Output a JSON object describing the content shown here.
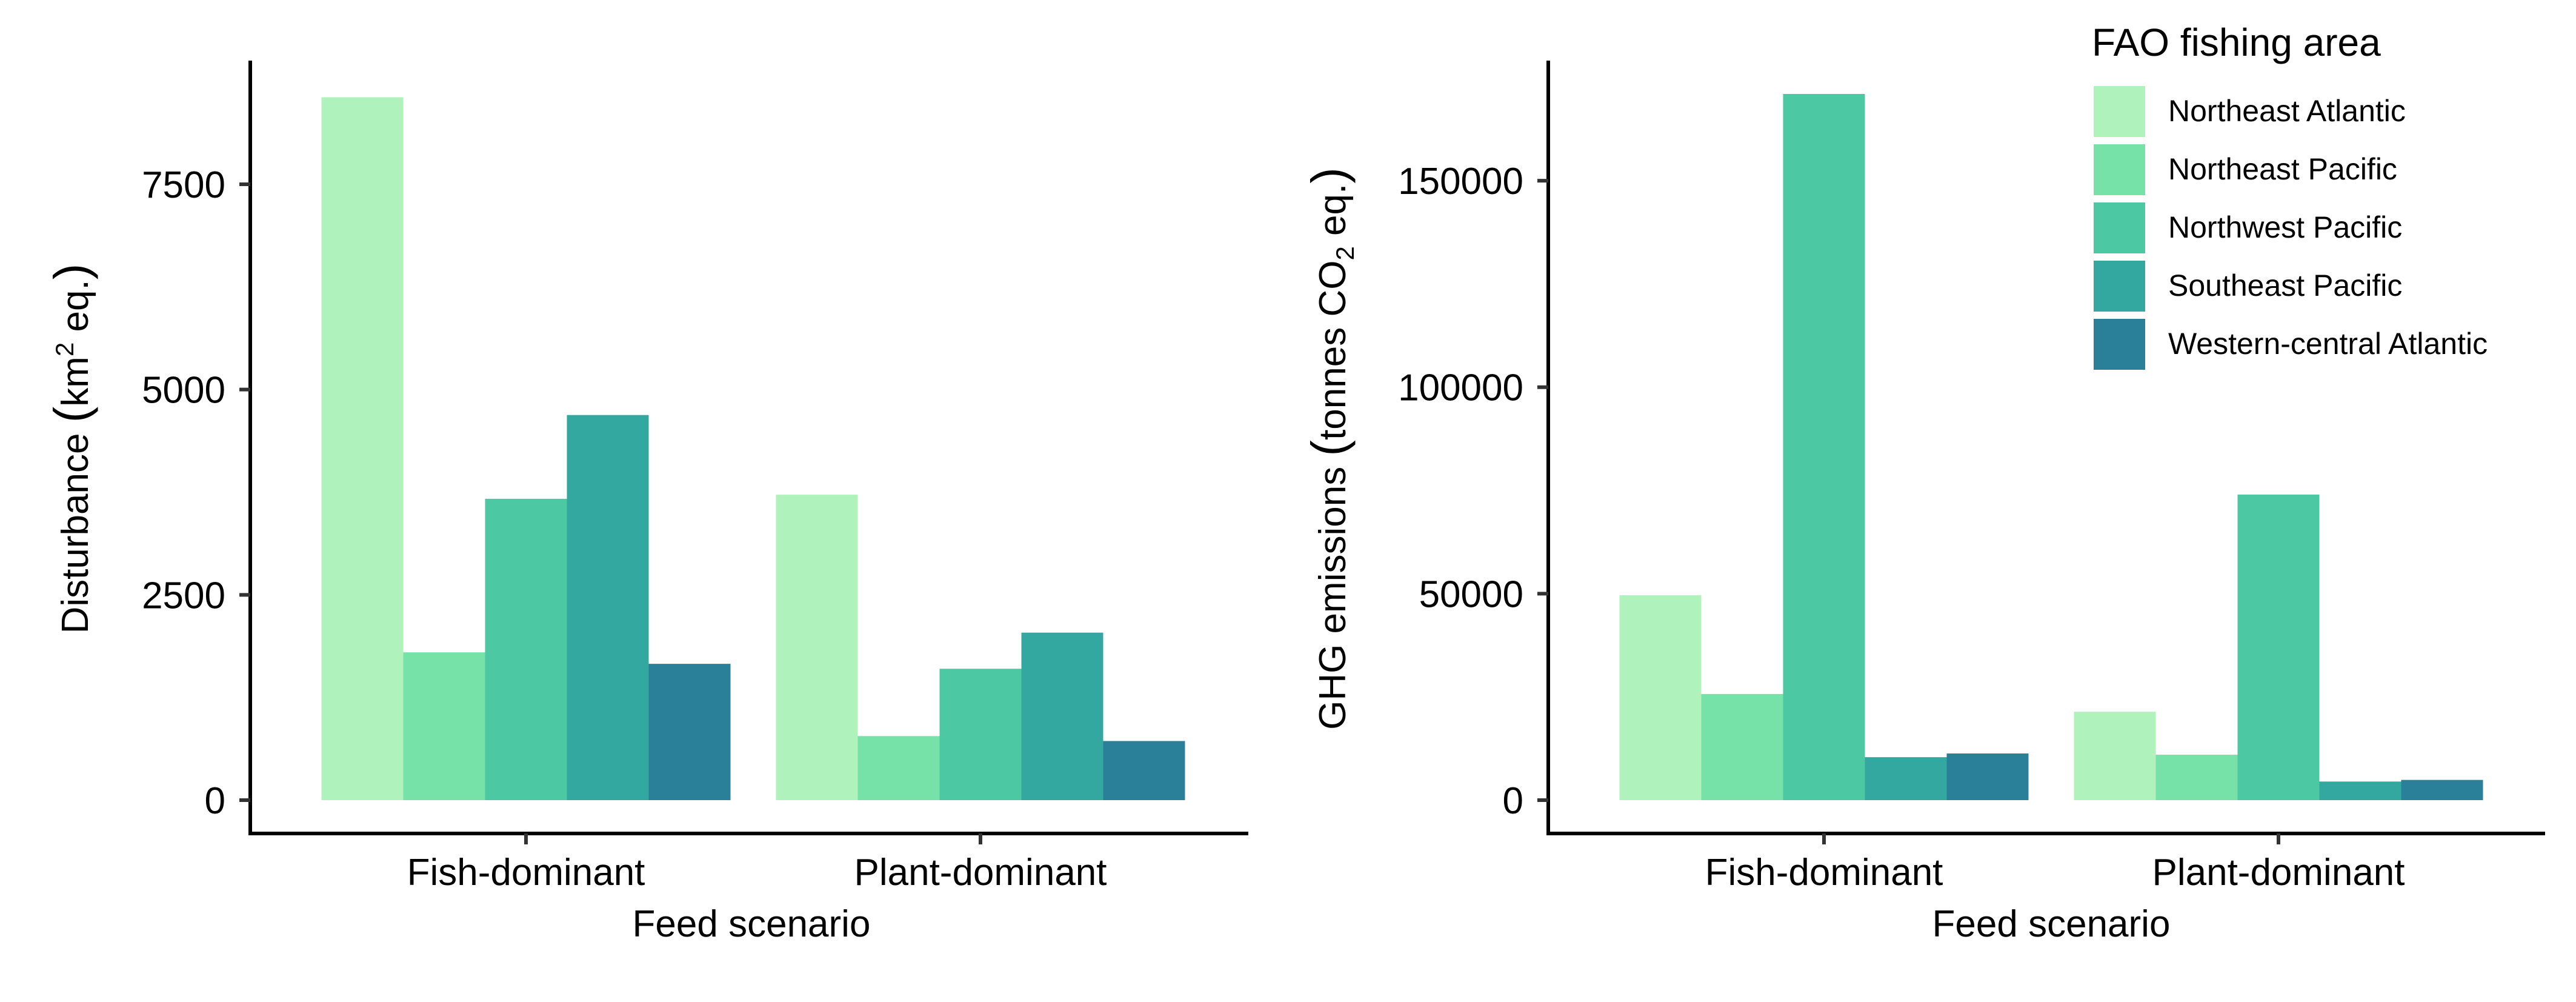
{
  "legend": {
    "title": "FAO fishing area",
    "entries": [
      {
        "name": "Northeast Atlantic",
        "color": "#b0f2bc"
      },
      {
        "name": "Northeast Pacific",
        "color": "#77e2a8"
      },
      {
        "name": "Northwest Pacific",
        "color": "#4cc8a3"
      },
      {
        "name": "Southeast Pacific",
        "color": "#33a8a1"
      },
      {
        "name": "Western-central Atlantic",
        "color": "#2a7f99"
      }
    ]
  },
  "chart_data": [
    {
      "type": "bar",
      "title": "",
      "xlabel": "Feed scenario",
      "ylabel": {
        "prefix": "Disturbance ",
        "open": "(",
        "main": "km",
        "sup": "2",
        "rest": " eq.",
        "close": ")"
      },
      "categories": [
        "Fish-dominant",
        "Plant-dominant"
      ],
      "ylim": [
        0,
        8600
      ],
      "yticks": [
        0,
        2500,
        5000,
        7500
      ],
      "series": [
        {
          "name": "Northeast Atlantic",
          "values": [
            8560,
            3720
          ]
        },
        {
          "name": "Northeast Pacific",
          "values": [
            1800,
            780
          ]
        },
        {
          "name": "Northwest Pacific",
          "values": [
            3670,
            1600
          ]
        },
        {
          "name": "Southeast Pacific",
          "values": [
            4690,
            2040
          ]
        },
        {
          "name": "Western-central Atlantic",
          "values": [
            1660,
            720
          ]
        }
      ],
      "legend": "none",
      "grid": false
    },
    {
      "type": "bar",
      "title": "",
      "xlabel": "Feed scenario",
      "ylabel": {
        "prefix": "GHG emissions ",
        "open": "(",
        "main": "tonnes CO",
        "sub": "2",
        "rest": " eq.",
        "close": ")"
      },
      "categories": [
        "Fish-dominant",
        "Plant-dominant"
      ],
      "ylim": [
        0,
        171000
      ],
      "yticks": [
        0,
        50000,
        100000,
        150000
      ],
      "series": [
        {
          "name": "Northeast Atlantic",
          "values": [
            49600,
            21400
          ]
        },
        {
          "name": "Northeast Pacific",
          "values": [
            25700,
            11000
          ]
        },
        {
          "name": "Northwest Pacific",
          "values": [
            171000,
            74000
          ]
        },
        {
          "name": "Southeast Pacific",
          "values": [
            10400,
            4500
          ]
        },
        {
          "name": "Western-central Atlantic",
          "values": [
            11300,
            4900
          ]
        }
      ],
      "legend": "top-right",
      "grid": false
    }
  ]
}
